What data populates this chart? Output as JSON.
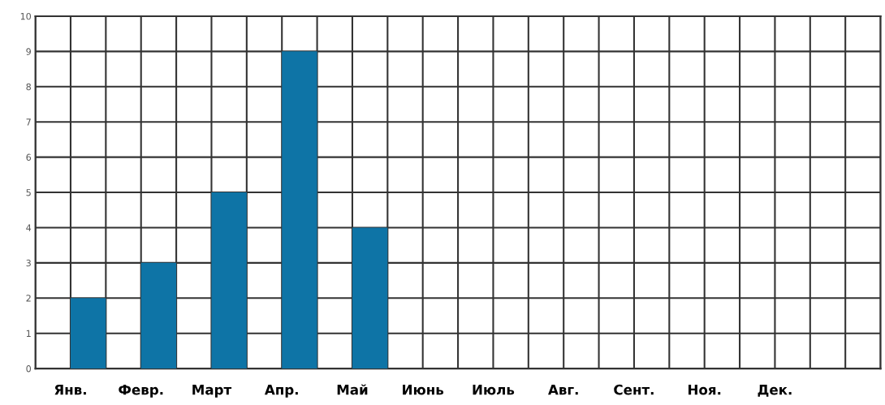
{
  "chart_data": {
    "type": "bar",
    "categories": [
      "Янв.",
      "Февр.",
      "Март",
      "Апр.",
      "Май",
      "Июнь",
      "Июль",
      "Авг.",
      "Сент.",
      "Ноя.",
      "Дек."
    ],
    "values": [
      2,
      3,
      5,
      9,
      4,
      null,
      null,
      null,
      null,
      null,
      null
    ],
    "color": "#0e74a6",
    "ylim": [
      0,
      10
    ],
    "yticks": [
      0,
      1,
      2,
      3,
      4,
      5,
      6,
      7,
      8,
      9,
      10
    ],
    "grid": true
  }
}
